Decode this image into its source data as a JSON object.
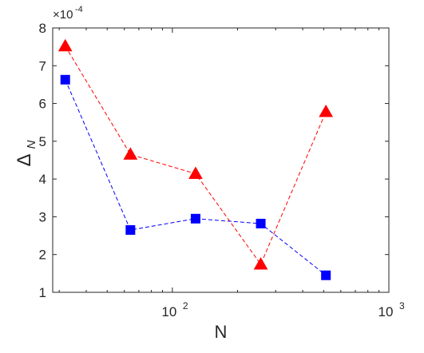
{
  "chart_data": {
    "type": "line",
    "xscale": "log",
    "xlim": [
      28,
      1000
    ],
    "ylim": [
      1,
      8
    ],
    "xlabel": "N",
    "ylabel": "Δ",
    "ylabel_sub": "N",
    "y_exponent_label": "×10",
    "y_exponent_power": "-4",
    "x_ticks": [
      {
        "value": 100,
        "base": "10",
        "power": "2"
      },
      {
        "value": 1000,
        "base": "10",
        "power": "3"
      }
    ],
    "y_ticks": [
      1,
      2,
      3,
      4,
      5,
      6,
      7,
      8
    ],
    "grid": false,
    "series": [
      {
        "marker": "triangle",
        "color": "#ff0000",
        "x": [
          32,
          64,
          128,
          256,
          512
        ],
        "y": [
          7.52,
          4.65,
          4.14,
          1.74,
          5.78
        ]
      },
      {
        "marker": "square",
        "color": "#0000ff",
        "x": [
          32,
          64,
          128,
          256,
          512
        ],
        "y": [
          6.63,
          2.65,
          2.95,
          2.82,
          1.45
        ]
      }
    ]
  }
}
